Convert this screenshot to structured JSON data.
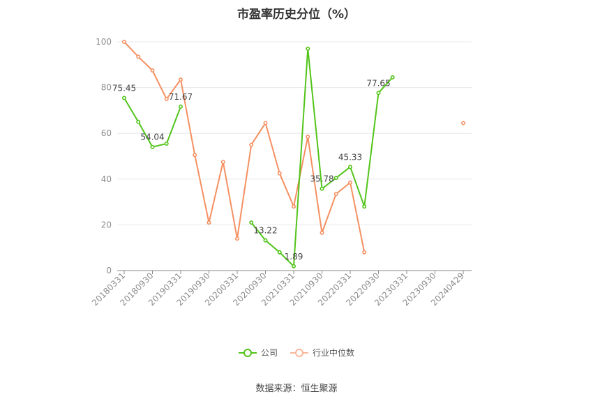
{
  "chart_data": {
    "type": "line",
    "title": "市盈率历史分位（%）",
    "ylim": [
      0,
      100
    ],
    "yticks": [
      "0",
      "20",
      "40",
      "60",
      "80",
      "100"
    ],
    "categories": [
      "20180331",
      "20180630",
      "20180930",
      "20181231",
      "20190331",
      "20190630",
      "20190930",
      "20191231",
      "20200331",
      "20200630",
      "20200930",
      "20201231",
      "20210331",
      "20210630",
      "20210930",
      "20211231",
      "20220331",
      "20220630",
      "20220930",
      "20221231",
      "20230331",
      "20230630",
      "20230930",
      "20231231",
      "20240429"
    ],
    "tick_labels": [
      "20180331",
      "20180930",
      "20190331",
      "20190930",
      "20200331",
      "20200930",
      "20210331",
      "20210930",
      "20220331",
      "20220930",
      "20230331",
      "20230930",
      "20240429"
    ],
    "grid": true,
    "legend_position": "bottom",
    "series": [
      {
        "name": "公司",
        "color": "#52c41a",
        "values": [
          75.45,
          65,
          54.04,
          55.5,
          71.67,
          null,
          null,
          null,
          null,
          21,
          13.22,
          8,
          1.89,
          97,
          35.78,
          40.5,
          45.33,
          28,
          77.65,
          84.5,
          null,
          null,
          null,
          null,
          null
        ],
        "labels": {
          "0": "75.45",
          "2": "54.04",
          "4": "71.67",
          "10": "13.22",
          "12": "1.89",
          "14": "35.78",
          "16": "45.33",
          "18": "77.65"
        }
      },
      {
        "name": "行业中位数",
        "color": "#f59062",
        "values": [
          100,
          93.5,
          87.5,
          75,
          83.5,
          50.5,
          21,
          47.5,
          14,
          55,
          64.5,
          42.5,
          28,
          58.5,
          16.5,
          33.5,
          38.5,
          8,
          null,
          null,
          null,
          null,
          null,
          null,
          64.5
        ],
        "labels": {}
      }
    ]
  },
  "source_text": "数据来源：恒生聚源"
}
